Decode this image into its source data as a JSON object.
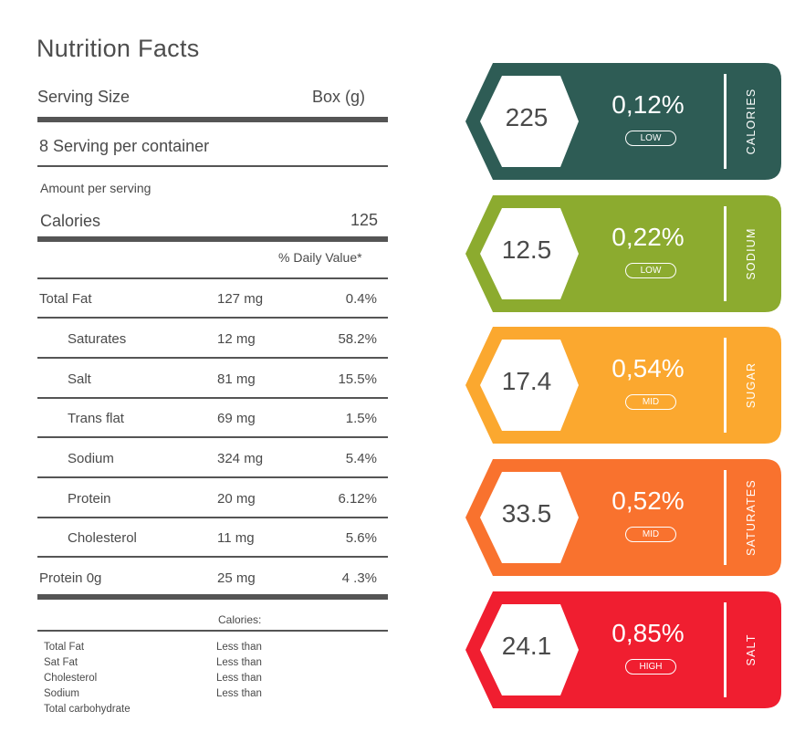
{
  "title": "Nutrition Facts",
  "serving": {
    "size_label": "Serving Size",
    "size_value": "Box (g)",
    "per_container": "8 Serving per container"
  },
  "amount_label": "Amount per serving",
  "calories": {
    "label": "Calories",
    "value": "125"
  },
  "daily_value_header": "% Daily Value*",
  "rows": [
    {
      "name": "Total Fat",
      "amount": "127 mg",
      "percent": "0.4%"
    },
    {
      "name": "Saturates",
      "amount": "12 mg",
      "percent": "58.2%"
    },
    {
      "name": "Salt",
      "amount": "81 mg",
      "percent": "15.5%"
    },
    {
      "name": "Trans flat",
      "amount": "69 mg",
      "percent": "1.5%"
    },
    {
      "name": "Sodium",
      "amount": "324 mg",
      "percent": "5.4%"
    },
    {
      "name": "Protein",
      "amount": "20 mg",
      "percent": "6.12%"
    },
    {
      "name": "Cholesterol",
      "amount": "11 mg",
      "percent": "5.6%"
    },
    {
      "name": "Protein 0g",
      "amount": "25 mg",
      "percent": "4 .3%"
    }
  ],
  "footer": {
    "calories_label": "Calories:",
    "items": [
      "Total Fat",
      "Sat Fat",
      "Cholesterol",
      "Sodium",
      "Total carbohydrate"
    ],
    "values": [
      "Less than",
      "Less than",
      "Less than",
      "Less than"
    ]
  },
  "cards": [
    {
      "value": "225",
      "percent": "0,12%",
      "level": "LOW",
      "label": "CALORIES",
      "color": "#2e5c55"
    },
    {
      "value": "12.5",
      "percent": "0,22%",
      "level": "LOW",
      "label": "SODIUM",
      "color": "#8cab2f"
    },
    {
      "value": "17.4",
      "percent": "0,54%",
      "level": "MID",
      "label": "SUGAR",
      "color": "#fba82f"
    },
    {
      "value": "33.5",
      "percent": "0,52%",
      "level": "MID",
      "label": "SATURATES",
      "color": "#f9722e"
    },
    {
      "value": "24.1",
      "percent": "0,85%",
      "level": "HIGH",
      "label": "SALT",
      "color": "#f01e30"
    }
  ]
}
